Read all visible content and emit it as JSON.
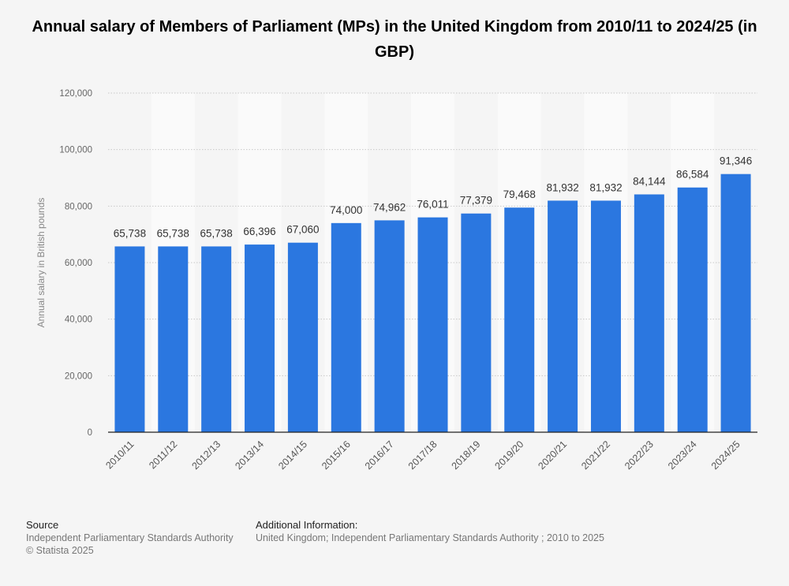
{
  "title": "Annual salary of Members of Parliament (MPs) in the United Kingdom from 2010/11 to 2024/25 (in GBP)",
  "colors": {
    "bar": "#2b77e0",
    "background": "#f5f5f5",
    "band": "#fafafa",
    "grid": "#c8c8c8"
  },
  "chart_data": {
    "type": "bar",
    "title": "Annual salary of Members of Parliament (MPs) in the United Kingdom from 2010/11 to 2024/25 (in GBP)",
    "xlabel": "",
    "ylabel": "Annual salary in British pounds",
    "ylim": [
      0,
      120000
    ],
    "yticks": [
      0,
      20000,
      40000,
      60000,
      80000,
      100000,
      120000
    ],
    "ytick_labels": [
      "0",
      "20,000",
      "40,000",
      "60,000",
      "80,000",
      "100,000",
      "120,000"
    ],
    "categories": [
      "2010/11",
      "2011/12",
      "2012/13",
      "2013/14",
      "2014/15",
      "2015/16",
      "2016/17",
      "2017/18",
      "2018/19",
      "2019/20",
      "2020/21",
      "2021/22",
      "2022/23",
      "2023/24",
      "2024/25"
    ],
    "values": [
      65738,
      65738,
      65738,
      66396,
      67060,
      74000,
      74962,
      76011,
      77379,
      79468,
      81932,
      81932,
      84144,
      86584,
      91346
    ],
    "value_labels": [
      "65,738",
      "65,738",
      "65,738",
      "66,396",
      "67,060",
      "74,000",
      "74,962",
      "76,011",
      "77,379",
      "79,468",
      "81,932",
      "81,932",
      "84,144",
      "86,584",
      "91,346"
    ],
    "grid": true
  },
  "footer": {
    "source_heading": "Source",
    "source_lines": [
      "Independent Parliamentary Standards Authority",
      "© Statista 2025"
    ],
    "additional_heading": "Additional Information:",
    "additional_text": "United Kingdom; Independent Parliamentary Standards Authority ; 2010 to 2025"
  }
}
